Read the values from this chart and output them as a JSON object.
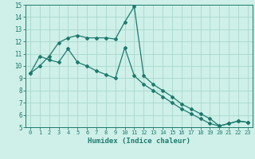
{
  "xlabel": "Humidex (Indice chaleur)",
  "xlim": [
    -0.5,
    23.5
  ],
  "ylim": [
    5,
    15
  ],
  "xticks": [
    0,
    1,
    2,
    3,
    4,
    5,
    6,
    7,
    8,
    9,
    10,
    11,
    12,
    13,
    14,
    15,
    16,
    17,
    18,
    19,
    20,
    21,
    22,
    23
  ],
  "yticks": [
    5,
    6,
    7,
    8,
    9,
    10,
    11,
    12,
    13,
    14,
    15
  ],
  "bg_color": "#cef0e8",
  "grid_color": "#a8d8cc",
  "line_color": "#1e7a6e",
  "line1_x": [
    0,
    1,
    2,
    3,
    4,
    5,
    6,
    7,
    8,
    9,
    10,
    11,
    12,
    13,
    14,
    15,
    16,
    17,
    18,
    19,
    20,
    21,
    22,
    23
  ],
  "line1_y": [
    9.4,
    10.0,
    10.8,
    11.9,
    12.3,
    12.5,
    12.3,
    12.3,
    12.3,
    12.2,
    13.6,
    14.85,
    9.2,
    8.5,
    8.0,
    7.5,
    6.9,
    6.5,
    6.1,
    5.7,
    5.1,
    5.3,
    5.5,
    5.4
  ],
  "line2_x": [
    0,
    1,
    2,
    3,
    4,
    5,
    6,
    7,
    8,
    9,
    10,
    11,
    12,
    13,
    14,
    15,
    16,
    17,
    18,
    19,
    20,
    21,
    22,
    23
  ],
  "line2_y": [
    9.4,
    10.8,
    10.5,
    10.3,
    11.4,
    10.3,
    10.0,
    9.6,
    9.3,
    9.0,
    11.5,
    9.2,
    8.5,
    8.0,
    7.5,
    7.0,
    6.5,
    6.1,
    5.7,
    5.3,
    5.1,
    5.3,
    5.5,
    5.4
  ]
}
